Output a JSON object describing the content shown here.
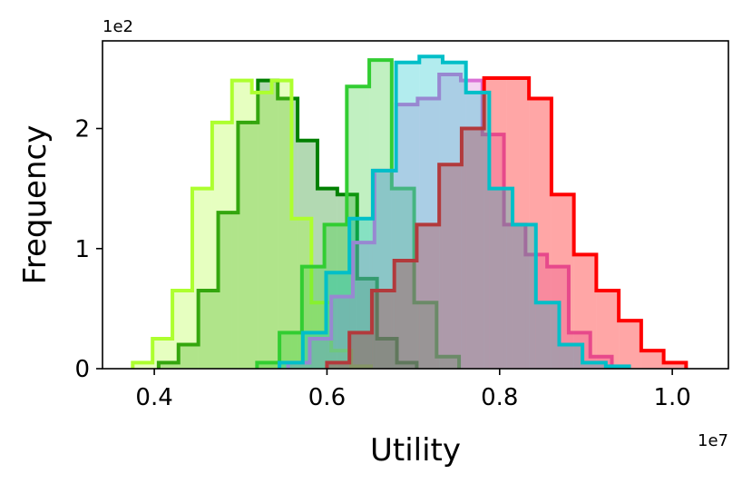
{
  "chart_data": {
    "type": "histogram",
    "xlabel": "Utility",
    "ylabel": "Frequency",
    "x_offset_label": "1e7",
    "y_offset_label": "1e2",
    "xlim": [
      0.34,
      1.065
    ],
    "ylim": [
      0,
      2.73
    ],
    "x_ticks": [
      {
        "value": 0.4,
        "label": "0.4"
      },
      {
        "value": 0.6,
        "label": "0.6"
      },
      {
        "value": 0.8,
        "label": "0.8"
      },
      {
        "value": 1.0,
        "label": "1.0"
      }
    ],
    "y_ticks": [
      {
        "value": 0,
        "label": "0"
      },
      {
        "value": 1,
        "label": "1"
      },
      {
        "value": 2,
        "label": "2"
      }
    ],
    "grid": false,
    "series": [
      {
        "color": "#008000",
        "fill_opacity": 0.3,
        "edge_opacity": 1.0,
        "edges": [
          0.405,
          0.428,
          0.451,
          0.474,
          0.497,
          0.52,
          0.543,
          0.566,
          0.589,
          0.612,
          0.635,
          0.658,
          0.681,
          0.704
        ],
        "counts": [
          0.05,
          0.2,
          0.65,
          1.3,
          2.05,
          2.4,
          2.25,
          1.9,
          1.5,
          1.45,
          0.75,
          0.25,
          0.05
        ]
      },
      {
        "color": "#adff2f",
        "fill_opacity": 0.3,
        "edge_opacity": 1.0,
        "edges": [
          0.375,
          0.398,
          0.421,
          0.444,
          0.467,
          0.49,
          0.513,
          0.536,
          0.559,
          0.582,
          0.605,
          0.628,
          0.651
        ],
        "counts": [
          0.05,
          0.25,
          0.65,
          1.5,
          2.05,
          2.4,
          2.3,
          2.4,
          1.25,
          0.55,
          0.15,
          0.02
        ]
      },
      {
        "color": "#32cd32",
        "fill_opacity": 0.3,
        "edge_opacity": 1.0,
        "edges": [
          0.519,
          0.545,
          0.571,
          0.597,
          0.623,
          0.649,
          0.675,
          0.701,
          0.727,
          0.753
        ],
        "counts": [
          0.05,
          0.3,
          0.85,
          1.2,
          2.35,
          2.57,
          1.5,
          0.55,
          0.1
        ]
      },
      {
        "color": "#da70d6",
        "fill_opacity": 0.3,
        "edge_opacity": 1.0,
        "edges": [
          0.555,
          0.58,
          0.605,
          0.63,
          0.655,
          0.68,
          0.705,
          0.73,
          0.755,
          0.78,
          0.805,
          0.83,
          0.855,
          0.88,
          0.905,
          0.93
        ],
        "counts": [
          0.05,
          0.25,
          0.6,
          1.05,
          1.65,
          2.2,
          2.25,
          2.45,
          2.4,
          1.95,
          1.2,
          0.95,
          0.85,
          0.3,
          0.1
        ]
      },
      {
        "color": "#ff0000",
        "fill_opacity": 0.35,
        "edge_opacity": 1.0,
        "edges": [
          0.6,
          0.626,
          0.652,
          0.678,
          0.704,
          0.73,
          0.756,
          0.782,
          0.808,
          0.834,
          0.86,
          0.886,
          0.912,
          0.938,
          0.964,
          0.99,
          1.016
        ],
        "counts": [
          0.05,
          0.3,
          0.65,
          0.9,
          1.2,
          1.7,
          2.0,
          2.42,
          2.42,
          2.25,
          1.45,
          0.95,
          0.65,
          0.4,
          0.15,
          0.05
        ]
      },
      {
        "color": "#00bfc8",
        "fill_opacity": 0.3,
        "edge_opacity": 1.0,
        "edges": [
          0.545,
          0.572,
          0.599,
          0.626,
          0.653,
          0.68,
          0.707,
          0.734,
          0.761,
          0.788,
          0.815,
          0.842,
          0.869,
          0.896,
          0.923,
          0.95
        ],
        "counts": [
          0.05,
          0.3,
          0.8,
          1.25,
          1.65,
          2.55,
          2.6,
          2.55,
          2.3,
          1.5,
          1.2,
          0.55,
          0.2,
          0.05,
          0.02
        ]
      }
    ]
  }
}
